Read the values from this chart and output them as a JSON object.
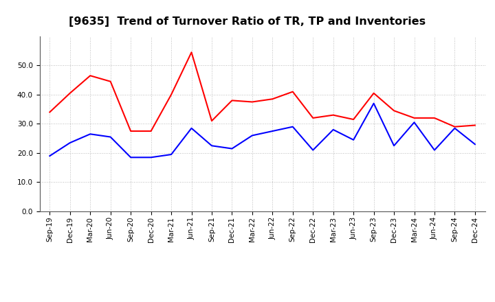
{
  "title": "[9635]  Trend of Turnover Ratio of TR, TP and Inventories",
  "x_labels": [
    "Sep-19",
    "Dec-19",
    "Mar-20",
    "Jun-20",
    "Sep-20",
    "Dec-20",
    "Mar-21",
    "Jun-21",
    "Sep-21",
    "Dec-21",
    "Mar-22",
    "Jun-22",
    "Sep-22",
    "Dec-22",
    "Mar-23",
    "Jun-23",
    "Sep-23",
    "Dec-23",
    "Mar-24",
    "Jun-24",
    "Sep-24",
    "Dec-24"
  ],
  "trade_receivables": [
    34.0,
    40.5,
    46.5,
    44.5,
    27.5,
    27.5,
    40.0,
    54.5,
    31.0,
    38.0,
    37.5,
    38.5,
    41.0,
    32.0,
    33.0,
    31.5,
    40.5,
    34.5,
    32.0,
    32.0,
    29.0,
    29.5
  ],
  "trade_payables": [
    19.0,
    23.5,
    26.5,
    25.5,
    18.5,
    18.5,
    19.5,
    28.5,
    22.5,
    21.5,
    26.0,
    27.5,
    29.0,
    21.0,
    28.0,
    24.5,
    37.0,
    22.5,
    30.5,
    21.0,
    28.5,
    23.0
  ],
  "inventories": [
    null,
    null,
    null,
    null,
    null,
    null,
    null,
    null,
    null,
    null,
    null,
    null,
    null,
    null,
    null,
    null,
    null,
    null,
    null,
    null,
    null,
    null
  ],
  "tr_color": "#ff0000",
  "tp_color": "#0000ff",
  "inv_color": "#008000",
  "ylim": [
    0.0,
    60.0
  ],
  "yticks": [
    0.0,
    10.0,
    20.0,
    30.0,
    40.0,
    50.0
  ],
  "background_color": "#ffffff",
  "grid_color": "#aaaaaa",
  "title_fontsize": 11.5,
  "legend_fontsize": 9,
  "tick_fontsize": 7.5
}
